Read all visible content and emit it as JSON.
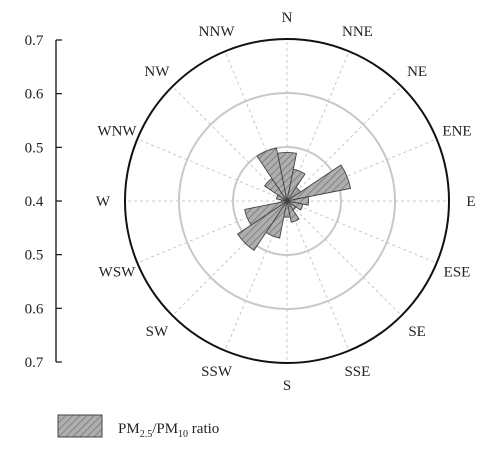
{
  "chart_data": {
    "type": "polar-bar",
    "directions": [
      "N",
      "NNE",
      "NE",
      "ENE",
      "E",
      "ESE",
      "SE",
      "SSE",
      "S",
      "SSW",
      "SW",
      "WSW",
      "W",
      "WNW",
      "NW",
      "NNW"
    ],
    "values": [
      0.49,
      0.46,
      0.43,
      0.52,
      0.44,
      0.43,
      0.42,
      0.44,
      0.43,
      0.47,
      0.51,
      0.48,
      0.41,
      0.42,
      0.45,
      0.5
    ],
    "radial_ticks": [
      "0.7",
      "0.6",
      "0.5",
      "0.4",
      "0.5",
      "0.6",
      "0.7"
    ],
    "radial_range": [
      0.4,
      0.7
    ],
    "rings": [
      0.5,
      0.6
    ],
    "grid": true,
    "legend": {
      "position": "bottom-left",
      "label_main": "PM",
      "sub1": "2.5",
      "slash": "/PM",
      "sub2": "10",
      "suffix": " ratio"
    },
    "colors": {
      "bar_fill": "#aeaeae",
      "bar_stroke": "#444444",
      "hatch": "#555555",
      "ring": "#c8c8c8",
      "spoke": "#c8c8c8",
      "outer": "#111111"
    }
  }
}
